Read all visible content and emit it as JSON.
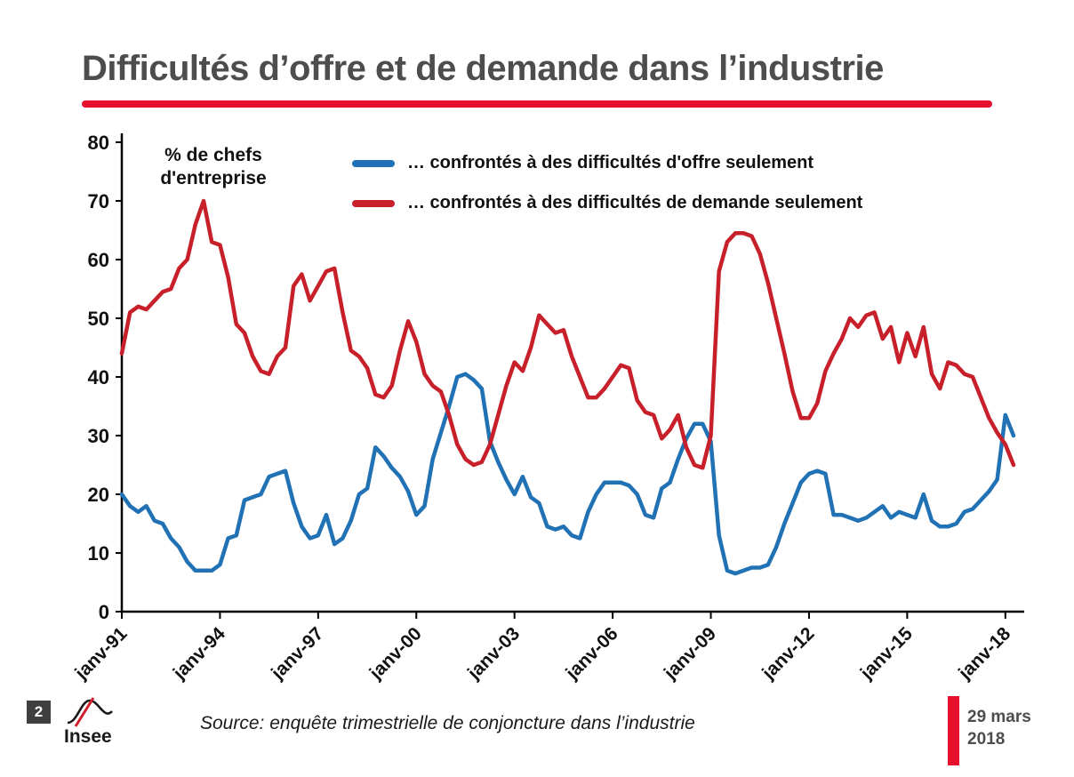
{
  "title": "Difficultés d’offre et de demande dans l’industrie",
  "annotation": {
    "line1": "% de chefs",
    "line2": "d'entreprise"
  },
  "chart_data": {
    "type": "line",
    "title": "Difficultés d’offre et de demande dans l’industrie",
    "unit_label": "% de chefs d'entreprise",
    "ylim": [
      0,
      80
    ],
    "y_ticks": [
      0,
      10,
      20,
      30,
      40,
      50,
      60,
      70,
      80
    ],
    "x_ticks": [
      "janv-91",
      "janv-94",
      "janv-97",
      "janv-00",
      "janv-03",
      "janv-06",
      "janv-09",
      "janv-12",
      "janv-15",
      "janv-18"
    ],
    "x_start": "1991-01",
    "x_step_months": 3,
    "grid": false,
    "legend_position": "top-inside",
    "series": [
      {
        "name": "… confrontés  à des difficultés d'offre seulement",
        "color": "#2171b5",
        "values": [
          20,
          18,
          17,
          18,
          15.5,
          15,
          12.5,
          11,
          8.5,
          7,
          7,
          7,
          8,
          12.5,
          13,
          19,
          19.5,
          20,
          23,
          23.5,
          24,
          18.5,
          14.5,
          12.5,
          13,
          16.5,
          11.5,
          12.5,
          15.5,
          20,
          21,
          28,
          26.5,
          24.5,
          23,
          20.5,
          16.5,
          18,
          26,
          30.5,
          35,
          40,
          40.5,
          39.5,
          38,
          29,
          25.5,
          22.5,
          20,
          23,
          19.5,
          18.5,
          14.5,
          14,
          14.5,
          13,
          12.5,
          17,
          20,
          22,
          22,
          22,
          21.5,
          20,
          16.5,
          16,
          21,
          22,
          26,
          29.5,
          32,
          32,
          29,
          13,
          7,
          6.5,
          7,
          7.5,
          7.5,
          8,
          11,
          15,
          18.5,
          22,
          23.5,
          24,
          23.5,
          16.5,
          16.5,
          16,
          15.5,
          16,
          17,
          18,
          16,
          17,
          16.5,
          16,
          20,
          15.5,
          14.5,
          14.5,
          15,
          17,
          17.5,
          19,
          20.5,
          22.5,
          33.5,
          30
        ]
      },
      {
        "name": "… confrontés à des difficultés de demande seulement",
        "color": "#c7202a",
        "values": [
          44,
          51,
          52,
          51.5,
          53,
          54.5,
          55,
          58.5,
          60,
          66,
          70,
          63,
          62.5,
          57,
          49,
          47.5,
          43.5,
          41,
          40.5,
          43.5,
          45,
          55.5,
          57.5,
          53,
          55.5,
          58,
          58.5,
          51,
          44.5,
          43.5,
          41.5,
          37,
          36.5,
          38.5,
          44.5,
          49.5,
          46,
          40.5,
          38.5,
          37.5,
          33.5,
          28.5,
          26,
          25,
          25.5,
          28.5,
          33.5,
          38.5,
          42.5,
          41,
          45,
          50.5,
          49,
          47.5,
          48,
          43.5,
          40,
          36.5,
          36.5,
          38,
          40,
          42,
          41.5,
          36,
          34,
          33.5,
          29.5,
          31,
          33.5,
          28,
          25,
          24.5,
          30,
          58,
          63,
          64.5,
          64.5,
          64,
          61,
          56,
          50,
          44,
          37.5,
          33,
          33,
          35.5,
          41,
          44,
          46.5,
          50,
          48.5,
          50.5,
          51,
          46.5,
          48.5,
          42.5,
          47.5,
          43.5,
          48.5,
          40.5,
          38,
          42.5,
          42,
          40.5,
          40,
          36.5,
          33,
          30.5,
          28.5,
          25
        ]
      }
    ]
  },
  "footer": {
    "page_number": "2",
    "logo_text": "Insee",
    "source": "Source: enquête trimestrielle de conjoncture dans l’industrie",
    "date_line1": "29 mars",
    "date_line2": "2018"
  },
  "colors": {
    "accent_red": "#e8112d",
    "series_blue": "#2171b5",
    "series_red": "#c7202a",
    "title_gray": "#4d4d4d"
  }
}
